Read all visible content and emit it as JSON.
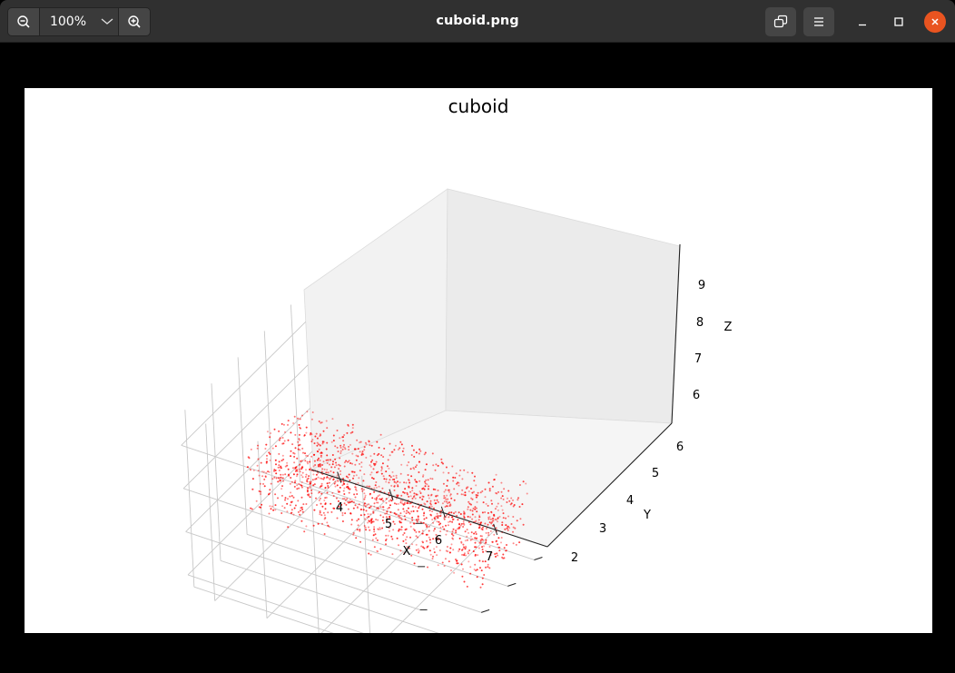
{
  "app": {
    "window_title": "cuboid.png",
    "zoom_label": "100%"
  },
  "icons": {
    "zoom_out": "zoom-out-icon",
    "zoom_in": "zoom-in-icon",
    "zoom_menu": "chevron-down-icon",
    "restore": "window-restore-icon",
    "menu": "hamburger-menu-icon",
    "minimize": "minimize-icon",
    "maximize": "maximize-icon",
    "close": "close-icon"
  },
  "colors": {
    "headerbar": "#303030",
    "close_button": "#e95420",
    "points": "#ff0000"
  },
  "chart_data": {
    "type": "scatter",
    "projection": "3d",
    "title": "cuboid",
    "xlabel": "X",
    "ylabel": "Y",
    "zlabel": "Z",
    "xticks": [
      "4",
      "5",
      "6",
      "7"
    ],
    "yticks": [
      "2",
      "3",
      "4",
      "5",
      "6"
    ],
    "zticks": [
      "6",
      "7",
      "8",
      "9"
    ],
    "xlim": [
      3.5,
      8.0
    ],
    "ylim": [
      1.8,
      6.5
    ],
    "zlim": [
      5.6,
      9.7
    ],
    "series": [
      {
        "color": "#ff0000",
        "marker_size": 1,
        "point_count": 1500,
        "shape": "cuboid",
        "x_range": [
          3.5,
          8.0
        ],
        "y_range": [
          4.0,
          6.0
        ],
        "z_range": [
          6.0,
          7.5
        ]
      }
    ],
    "grid": true
  }
}
